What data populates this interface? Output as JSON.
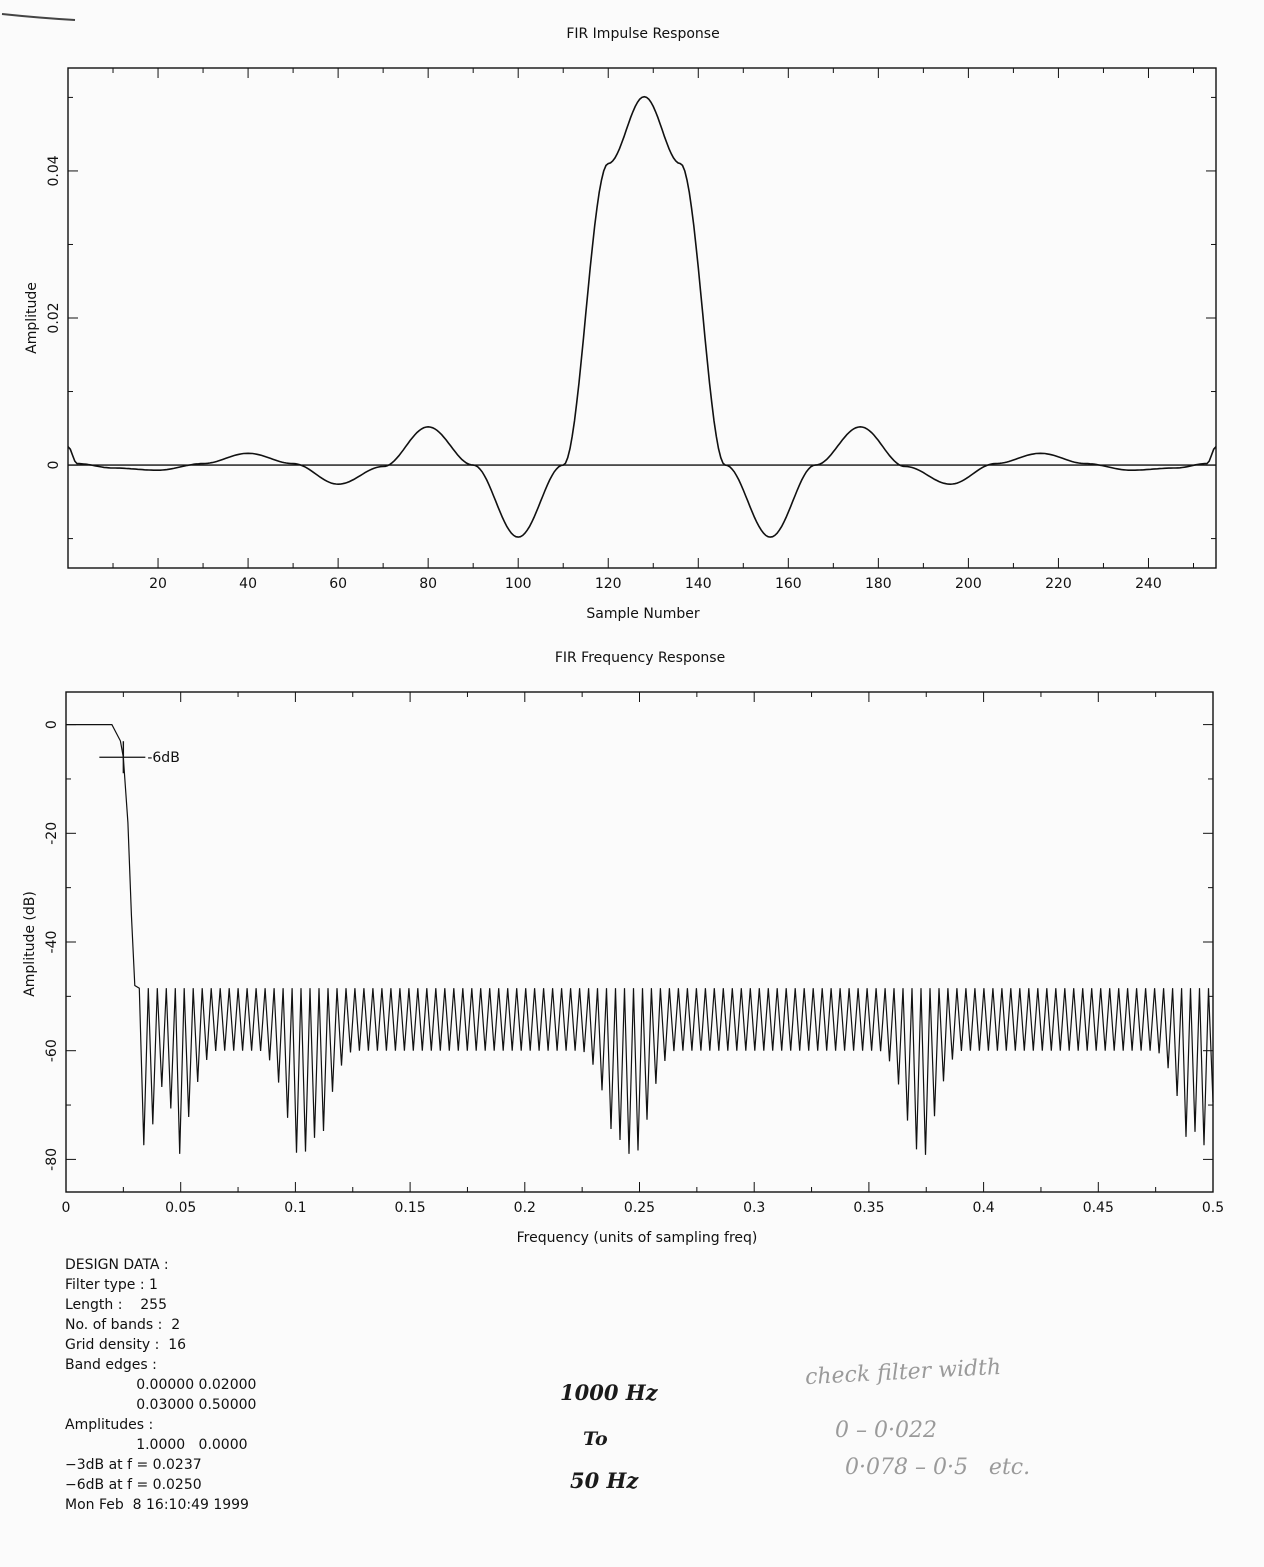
{
  "chart_data": [
    {
      "type": "line",
      "title": "FIR Impulse Response",
      "xlabel": "Sample Number",
      "ylabel": "Amplitude",
      "xlim": [
        0,
        255
      ],
      "ylim": [
        -0.014,
        0.054
      ],
      "xticks": [
        20,
        40,
        60,
        80,
        100,
        120,
        140,
        160,
        180,
        200,
        220,
        240
      ],
      "xtick_labels": [
        "20",
        "40",
        "60",
        "80",
        "100",
        "120",
        "140",
        "160",
        "180",
        "200",
        "220",
        "240"
      ],
      "yticks": [
        0,
        0.02,
        0.04
      ],
      "ytick_labels": [
        "0",
        "0.02",
        "0.04"
      ],
      "baseline": 0,
      "series": [
        {
          "description_points": "x = sample index, y = amplitude",
          "x": [
            0,
            2,
            10,
            20,
            30,
            40,
            50,
            60,
            70,
            80,
            90,
            100,
            110,
            120,
            128,
            136,
            146,
            156,
            166,
            176,
            186,
            196,
            206,
            216,
            226,
            236,
            246,
            253,
            255
          ],
          "y": [
            0.0025,
            0.0002,
            -0.0004,
            -0.0007,
            0.0002,
            0.0016,
            0.0002,
            -0.0026,
            -0.0002,
            0.0052,
            0.0,
            -0.0098,
            0.0,
            0.041,
            0.0501,
            0.041,
            0.0,
            -0.0098,
            0.0,
            0.0052,
            -0.0002,
            -0.0026,
            0.0002,
            0.0016,
            0.0002,
            -0.0007,
            -0.0004,
            0.0002,
            0.0025
          ]
        }
      ]
    },
    {
      "type": "line",
      "title": "FIR Frequency Response",
      "xlabel": "Frequency (units of sampling freq)",
      "ylabel": "Amplitude (dB)",
      "xlim": [
        0,
        0.5
      ],
      "ylim": [
        -86,
        6
      ],
      "xticks": [
        0,
        0.05,
        0.1,
        0.15,
        0.2,
        0.25,
        0.3,
        0.35,
        0.4,
        0.45,
        0.5
      ],
      "xtick_labels": [
        "0",
        "0.05",
        "0.1",
        "0.15",
        "0.2",
        "0.25",
        "0.3",
        "0.35",
        "0.4",
        "0.45",
        "0.5"
      ],
      "yticks": [
        0,
        -20,
        -40,
        -60,
        -80
      ],
      "ytick_labels": [
        "0",
        "-20",
        "-40",
        "-60",
        "-80"
      ],
      "passband": {
        "x": [
          0,
          0.02
        ],
        "y": [
          0,
          0
        ]
      },
      "transition": {
        "x": [
          0.02,
          0.0237,
          0.025,
          0.027,
          0.0285,
          0.03
        ],
        "y": [
          0,
          -3,
          -6,
          -18,
          -35,
          -48
        ]
      },
      "stopband": {
        "x_start": 0.03,
        "x_end": 0.5,
        "lobe_count": 120,
        "lobe_peak_db": -48.5,
        "null_depth_db": {
          "typical": -60,
          "min": -80
        },
        "deep_null_centers": [
          0.03,
          0.035,
          0.05,
          0.1,
          0.105,
          0.11,
          0.24,
          0.245,
          0.25,
          0.37,
          0.375,
          0.49,
          0.495
        ]
      },
      "annotations": [
        {
          "text": "-6dB",
          "x": 0.025,
          "y": -6
        }
      ]
    }
  ],
  "design_data": {
    "heading": "DESIGN DATA :",
    "lines": [
      "Filter type : 1",
      "Length :    255",
      "No. of bands :  2",
      "Grid density :  16",
      "Band edges :",
      "                0.00000 0.02000",
      "                0.03000 0.50000",
      "Amplitudes :",
      "                1.0000   0.0000",
      "−3dB at f = 0.0237",
      "−6dB at f = 0.0250",
      "Mon Feb  8 16:10:49 1999"
    ]
  },
  "handwriting": {
    "ink": [
      "1000 Hz",
      "To",
      "50 Hz"
    ],
    "pencil": [
      "check filter width",
      "0 – 0·022",
      "0·078 – 0·5   etc."
    ]
  }
}
